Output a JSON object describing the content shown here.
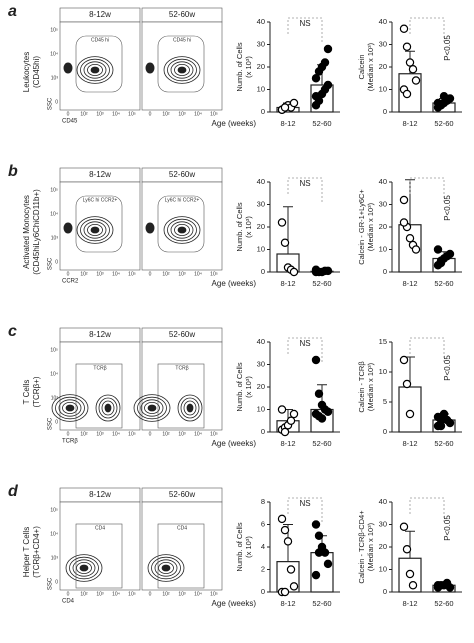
{
  "rows": [
    {
      "letter": "a",
      "label": [
        "Leukocytes",
        "(CD45hi)"
      ]
    },
    {
      "letter": "b",
      "label": [
        "Activated Monocytes",
        "(CD45hiLy6ChiCD11b+)"
      ]
    },
    {
      "letter": "c",
      "label": [
        "T Cells",
        "(TCRβ+)"
      ]
    },
    {
      "letter": "d",
      "label": [
        "Helper T Cells",
        "(TCRβ+CD4+)"
      ]
    }
  ],
  "flow": {
    "groups": [
      "8-12w",
      "52-60w"
    ],
    "ylabel": "SSC",
    "xlabels": [
      "CD45",
      "CCR2",
      "TCRβ",
      "CD4"
    ],
    "yticks": [
      "10⁵",
      "10⁴",
      "10³",
      "0"
    ],
    "xticks": [
      "0",
      "10²",
      "10³",
      "10⁴",
      "10⁵"
    ],
    "gates": [
      [
        "CD45 hi",
        "CD45 hi"
      ],
      [
        "Ly6C hi CCR2+",
        "Ly6C hi CCR2+"
      ],
      [
        "TCRβ",
        "TCRβ"
      ],
      [
        "CD4",
        "CD4"
      ]
    ]
  },
  "chart_data": [
    {
      "type": "bar",
      "ylabel": [
        "Numb. of Cells",
        "(x 10³)"
      ],
      "xlabel": "Age (weeks)",
      "categories": [
        "8-12",
        "52-60"
      ],
      "values": [
        2,
        12
      ],
      "errors": [
        2,
        9
      ],
      "points": [
        [
          1,
          2,
          3,
          2,
          4,
          1,
          2
        ],
        [
          3,
          5,
          8,
          10,
          12,
          15,
          18,
          20,
          22,
          28,
          7
        ]
      ],
      "point_colors": [
        "#ffffff",
        "#000000"
      ],
      "annotation": "NS",
      "ylim": [
        0,
        40
      ],
      "yticks": [
        0,
        10,
        20,
        30,
        40
      ]
    },
    {
      "type": "bar",
      "ylabel": [
        "Calcein",
        "(Median x 10³)"
      ],
      "categories": [
        "8-12",
        "52-60"
      ],
      "values": [
        17,
        4
      ],
      "errors": [
        10,
        2
      ],
      "points": [
        [
          37,
          29,
          22,
          19,
          14,
          10,
          8
        ],
        [
          2,
          3,
          4,
          5,
          6,
          4,
          3,
          7
        ]
      ],
      "point_colors": [
        "#ffffff",
        "#000000"
      ],
      "annotation": "P<0.05",
      "ylim": [
        0,
        40
      ],
      "yticks": [
        0,
        10,
        20,
        30,
        40
      ]
    },
    {
      "type": "bar",
      "ylabel": [
        "Numb. of Cells",
        "(x 10³)"
      ],
      "xlabel": "Age (weeks)",
      "categories": [
        "8-12",
        "52-60"
      ],
      "values": [
        8,
        0.3
      ],
      "errors": [
        21,
        0.3
      ],
      "points": [
        [
          22,
          13,
          2,
          1,
          0
        ],
        [
          0,
          0,
          0,
          0.5,
          0.5,
          1
        ]
      ],
      "point_colors": [
        "#ffffff",
        "#000000"
      ],
      "annotation": "NS",
      "ylim": [
        0,
        40
      ],
      "yticks": [
        0,
        10,
        20,
        30,
        40
      ]
    },
    {
      "type": "bar",
      "ylabel": [
        "Calcein - GR-1+Ly6C+",
        "(Median x 10³)"
      ],
      "categories": [
        "8-12",
        "52-60"
      ],
      "values": [
        21,
        6
      ],
      "errors": [
        20,
        3
      ],
      "points": [
        [
          32,
          20,
          15,
          12,
          10,
          22
        ],
        [
          3,
          5,
          6,
          7,
          8,
          10,
          4
        ]
      ],
      "point_colors": [
        "#ffffff",
        "#000000"
      ],
      "annotation": "P<0.05",
      "ylim": [
        0,
        40
      ],
      "yticks": [
        0,
        10,
        20,
        30,
        40
      ]
    },
    {
      "type": "bar",
      "ylabel": [
        "Numb. of Cells",
        "(x 10³)"
      ],
      "xlabel": "Age (weeks)",
      "categories": [
        "8-12",
        "52-60"
      ],
      "values": [
        5,
        10
      ],
      "errors": [
        5,
        11
      ],
      "points": [
        [
          1,
          2,
          3,
          5,
          8,
          10,
          0
        ],
        [
          32,
          17,
          12,
          10,
          9,
          8,
          7,
          6
        ]
      ],
      "point_colors": [
        "#ffffff",
        "#000000"
      ],
      "annotation": "NS",
      "ylim": [
        0,
        40
      ],
      "yticks": [
        0,
        10,
        20,
        30,
        40
      ]
    },
    {
      "type": "bar",
      "ylabel": [
        "Calcein - TCRβ",
        "(Median x 10³)"
      ],
      "categories": [
        "8-12",
        "52-60"
      ],
      "values": [
        7.5,
        2
      ],
      "errors": [
        5,
        1
      ],
      "points": [
        [
          12,
          8,
          3
        ],
        [
          1,
          2,
          3,
          2,
          1.5,
          2.5,
          1
        ]
      ],
      "point_colors": [
        "#ffffff",
        "#000000"
      ],
      "annotation": "P<0.05",
      "ylim": [
        0,
        15
      ],
      "yticks": [
        0,
        5,
        10,
        15
      ]
    },
    {
      "type": "bar",
      "ylabel": [
        "Numb. of Cells",
        "(x 10³)"
      ],
      "xlabel": "Age (weeks)",
      "categories": [
        "8-12",
        "52-60"
      ],
      "values": [
        2.7,
        3.5
      ],
      "errors": [
        3.3,
        1.5
      ],
      "points": [
        [
          6.5,
          5.5,
          4.5,
          2,
          0.5,
          0,
          0
        ],
        [
          6,
          5,
          4,
          3.5,
          2.5,
          1.5,
          3.5
        ]
      ],
      "point_colors": [
        "#ffffff",
        "#000000"
      ],
      "annotation": "NS",
      "ylim": [
        0,
        8
      ],
      "yticks": [
        0,
        2,
        4,
        6,
        8
      ]
    },
    {
      "type": "bar",
      "ylabel": [
        "Calcein - TCRβ-CD4+",
        "(Median x 10³)"
      ],
      "categories": [
        "8-12",
        "52-60"
      ],
      "values": [
        15,
        3
      ],
      "errors": [
        12,
        1
      ],
      "points": [
        [
          29,
          19,
          8,
          3
        ],
        [
          2,
          3,
          3,
          4,
          2,
          3
        ]
      ],
      "point_colors": [
        "#ffffff",
        "#000000"
      ],
      "annotation": "P<0.05",
      "ylim": [
        0,
        40
      ],
      "yticks": [
        0,
        10,
        20,
        30,
        40
      ]
    }
  ]
}
